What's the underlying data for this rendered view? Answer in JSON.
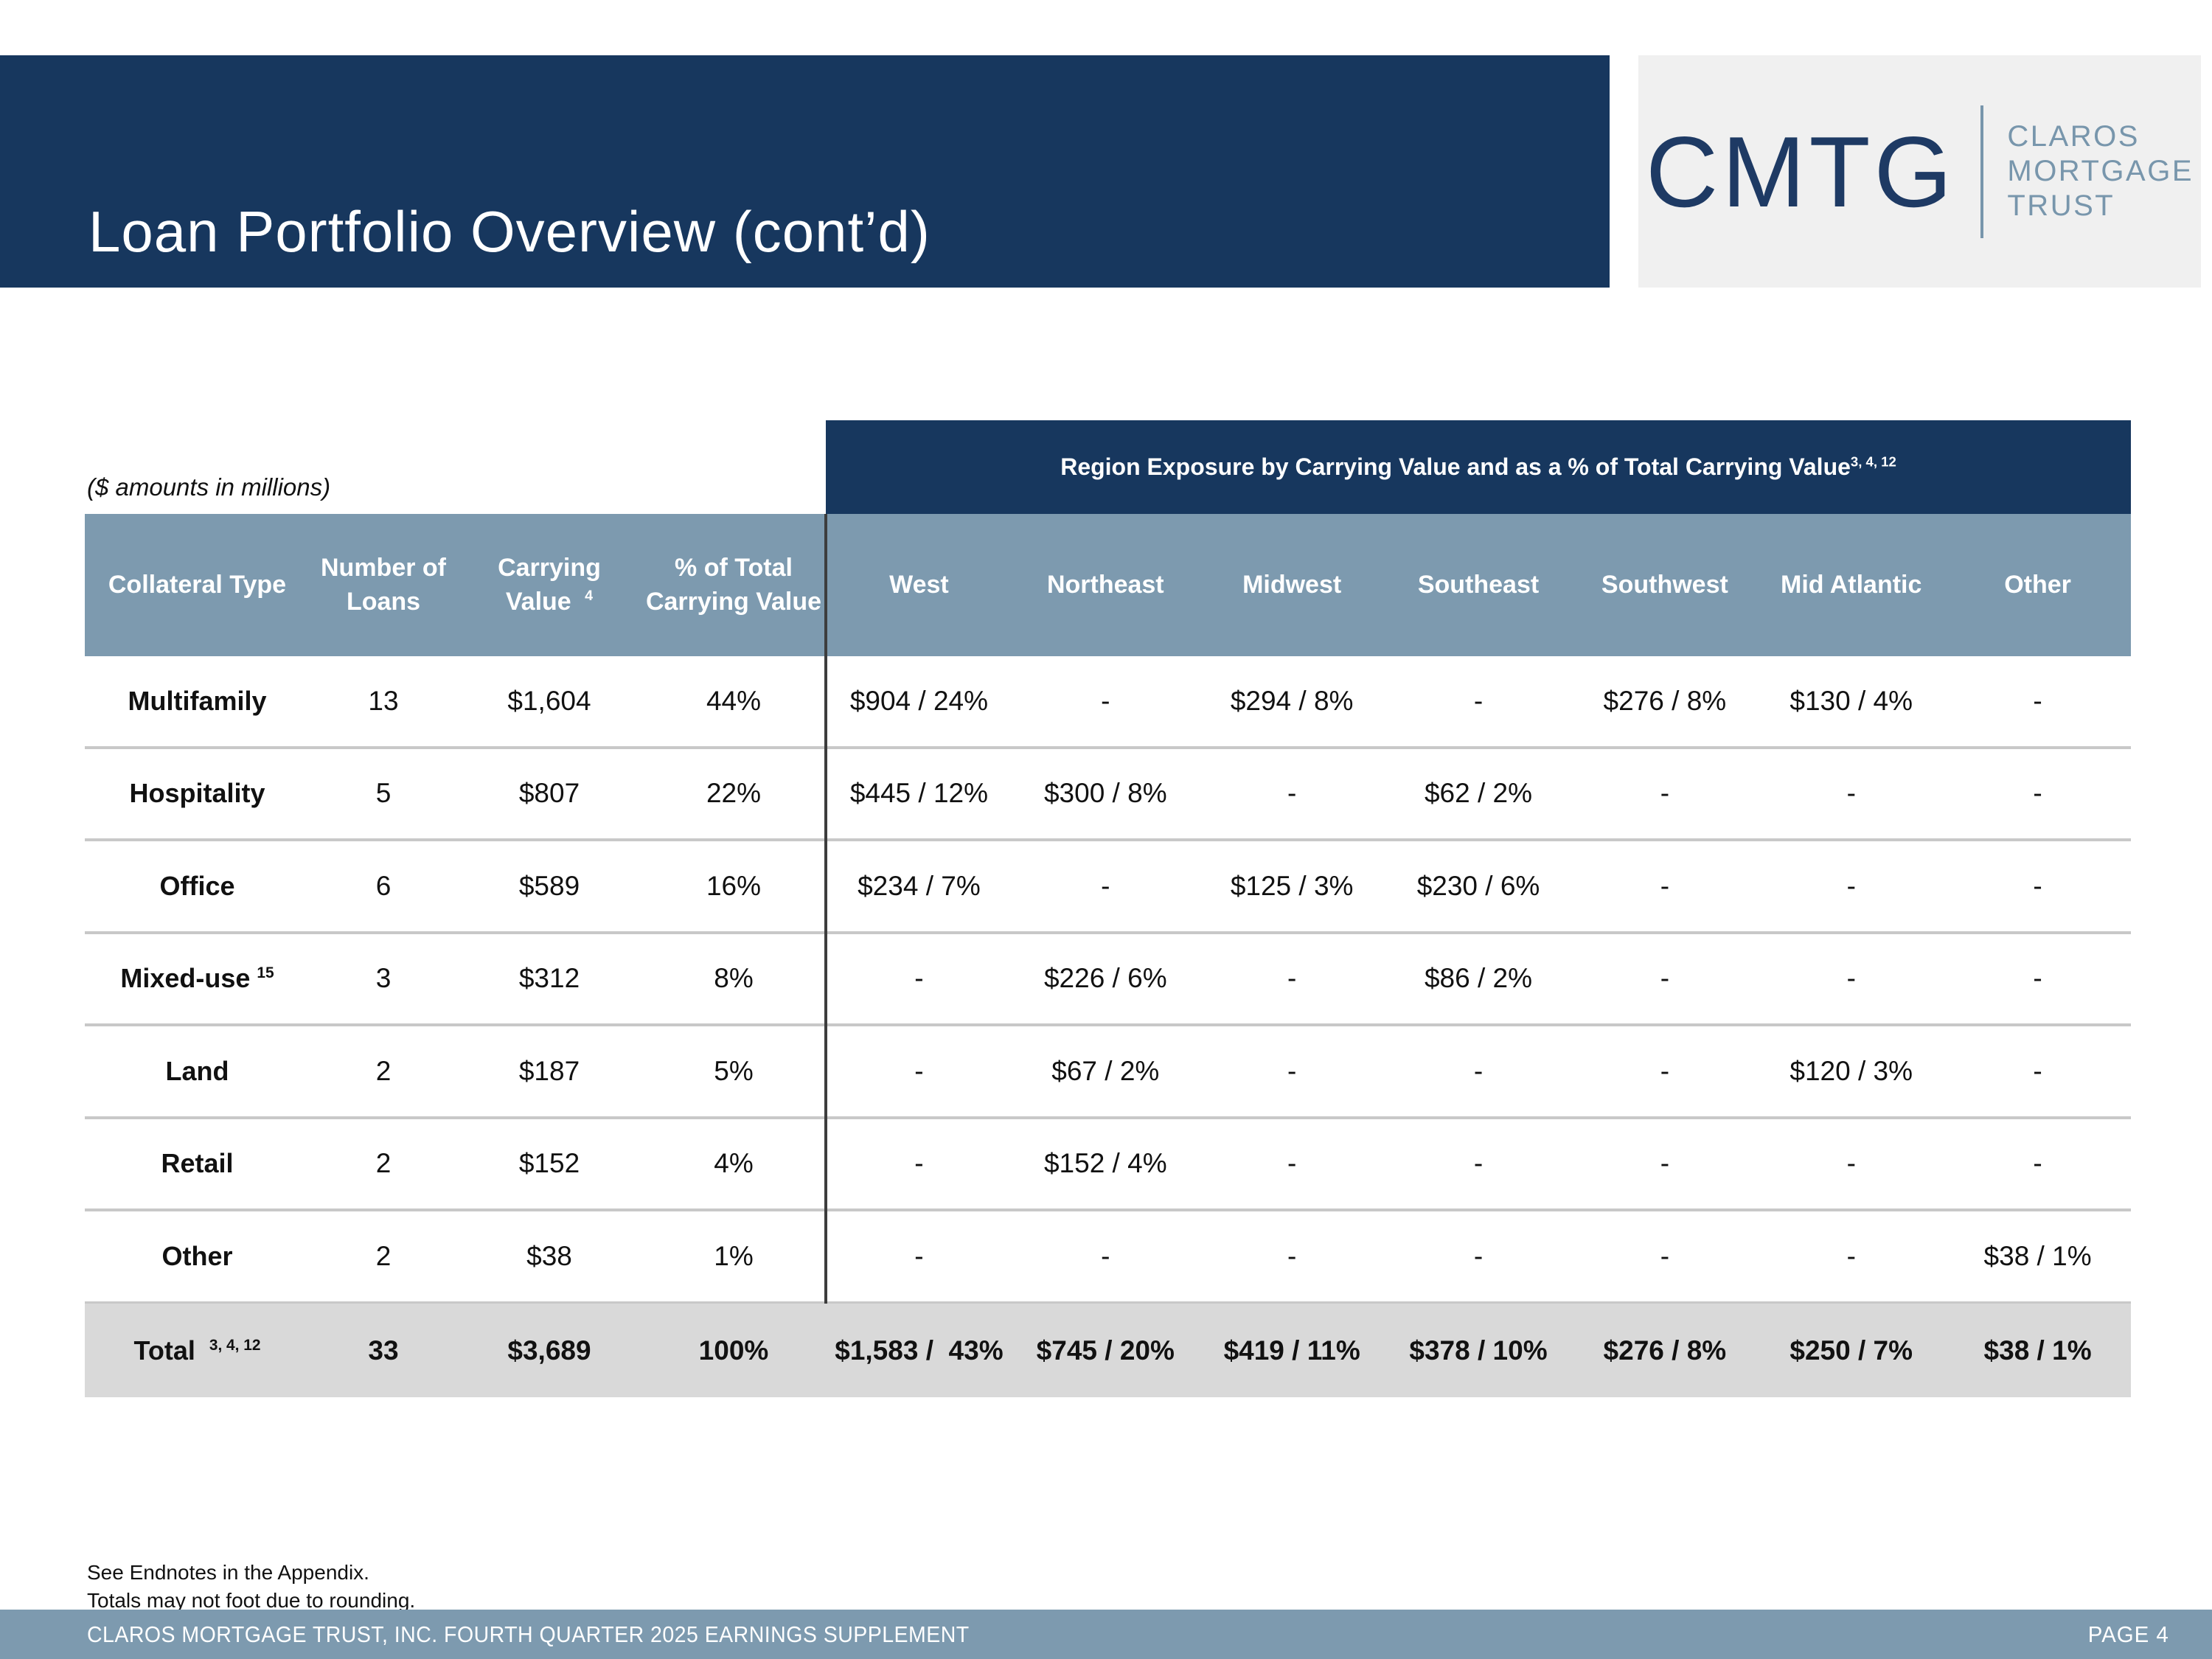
{
  "slide": {
    "title": "Loan Portfolio Overview (cont’d)",
    "logo": {
      "abbr": "CMTG",
      "name_lines": [
        "CLAROS",
        "MORTGAGE",
        "TRUST"
      ]
    },
    "units_note": "($ amounts in millions)",
    "region_banner": {
      "text": "Region Exposure by Carrying Value and as a % of Total Carrying Value",
      "superscript": "3, 4, 12"
    },
    "table": {
      "left_headers": [
        {
          "label": "Collateral Type",
          "sup": ""
        },
        {
          "label": "Number of\nLoans",
          "sup": ""
        },
        {
          "label": "Carrying\nValue ",
          "sup": "4"
        },
        {
          "label": "% of Total\nCarrying Value",
          "sup": ""
        }
      ],
      "region_headers": [
        "West",
        "Northeast",
        "Midwest",
        "Southeast",
        "Southwest",
        "Mid Atlantic",
        "Other"
      ],
      "rows": [
        {
          "type": "Multifamily",
          "sup": "",
          "loans": "13",
          "carrying": "$1,604",
          "pct": "44%",
          "regions": [
            "$904 / 24%",
            "-",
            "$294 / 8%",
            "-",
            "$276 / 8%",
            "$130 / 4%",
            "-"
          ]
        },
        {
          "type": "Hospitality",
          "sup": "",
          "loans": "5",
          "carrying": "$807",
          "pct": "22%",
          "regions": [
            "$445 / 12%",
            "$300 / 8%",
            "-",
            "$62 / 2%",
            "-",
            "-",
            "-"
          ]
        },
        {
          "type": "Office",
          "sup": "",
          "loans": "6",
          "carrying": "$589",
          "pct": "16%",
          "regions": [
            "$234 / 7%",
            "-",
            "$125 / 3%",
            "$230 / 6%",
            "-",
            "-",
            "-"
          ]
        },
        {
          "type": "Mixed-use",
          "sup": "15",
          "loans": "3",
          "carrying": "$312",
          "pct": "8%",
          "regions": [
            "-",
            "$226 / 6%",
            "-",
            "$86 / 2%",
            "-",
            "-",
            "-"
          ]
        },
        {
          "type": "Land",
          "sup": "",
          "loans": "2",
          "carrying": "$187",
          "pct": "5%",
          "regions": [
            "-",
            "$67 / 2%",
            "-",
            "-",
            "-",
            "$120 / 3%",
            "-"
          ]
        },
        {
          "type": "Retail",
          "sup": "",
          "loans": "2",
          "carrying": "$152",
          "pct": "4%",
          "regions": [
            "-",
            "$152 / 4%",
            "-",
            "-",
            "-",
            "-",
            "-"
          ]
        },
        {
          "type": "Other",
          "sup": "",
          "loans": "2",
          "carrying": "$38",
          "pct": "1%",
          "regions": [
            "-",
            "-",
            "-",
            "-",
            "-",
            "-",
            "$38 / 1%"
          ]
        }
      ],
      "total": {
        "type": "Total ",
        "sup": "3, 4, 12",
        "loans": "33",
        "carrying": "$3,689",
        "pct": "100%",
        "regions": [
          "$1,583 /  43%",
          "$745 / 20%",
          "$419 / 11%",
          "$378 / 10%",
          "$276 / 8%",
          "$250 / 7%",
          "$38 / 1%"
        ]
      }
    },
    "footnotes": [
      "See Endnotes in the Appendix.",
      "Totals may not foot due to rounding."
    ],
    "footer": {
      "left": "CLAROS MORTGAGE TRUST, INC. FOURTH QUARTER 2025 EARNINGS SUPPLEMENT",
      "right": "PAGE 4"
    },
    "colors": {
      "navy": "#17375e",
      "steel": "#7d9aaf",
      "logo_steel": "#7896ac",
      "total_row_bg": "#d9d9d9",
      "logo_bg": "#f0f0f0",
      "row_divider": "#c8c8c8",
      "column_divider": "#3d3d3d"
    }
  }
}
